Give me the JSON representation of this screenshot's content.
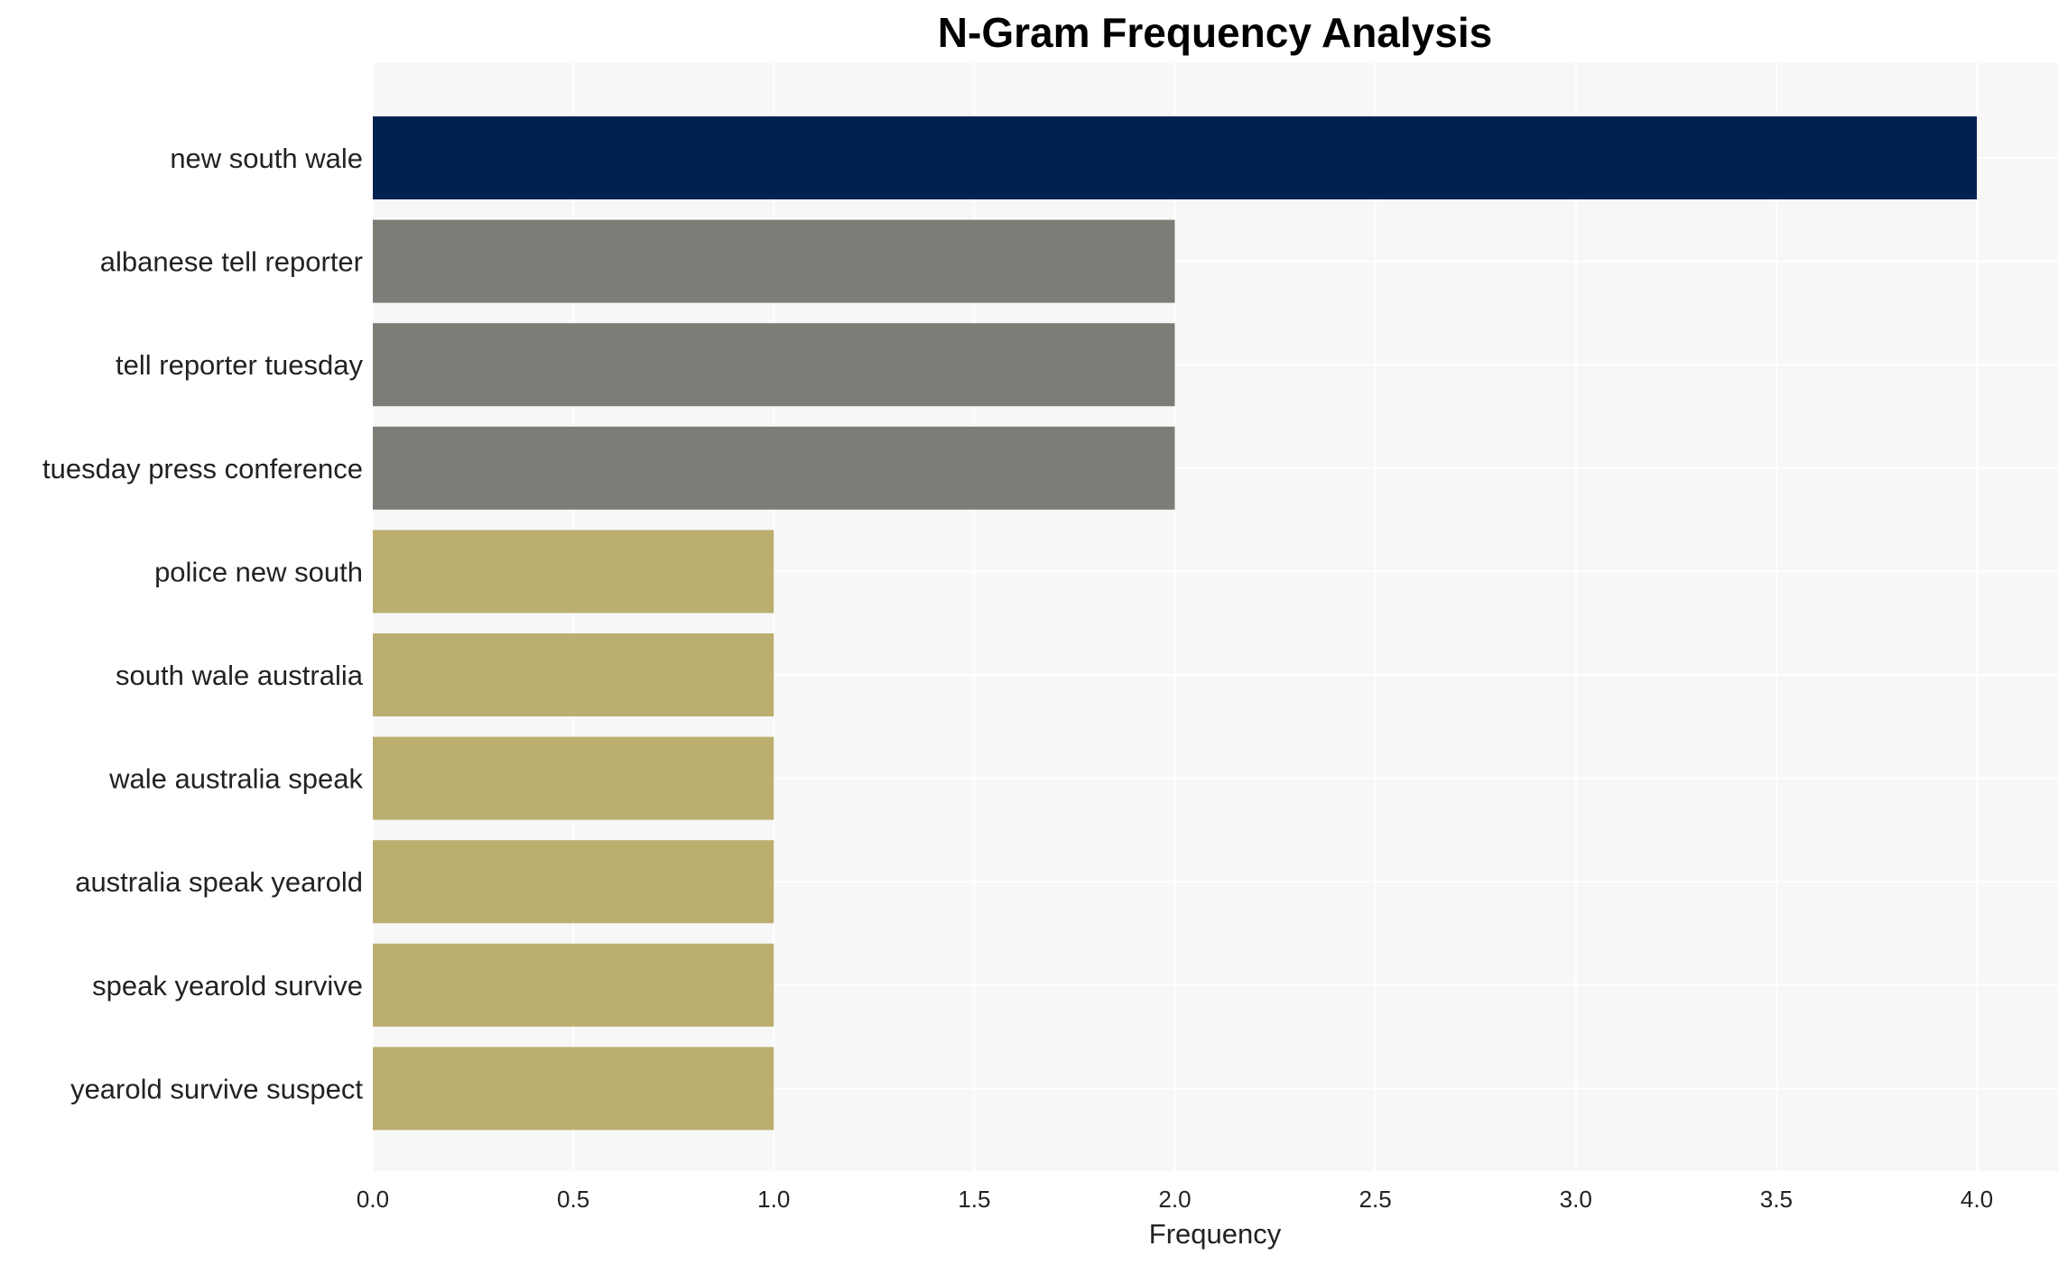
{
  "chart_data": {
    "type": "bar",
    "orientation": "horizontal",
    "title": "N-Gram Frequency Analysis",
    "xlabel": "Frequency",
    "ylabel": "",
    "xlim": [
      0,
      4.2
    ],
    "x_ticks": [
      "0.0",
      "0.5",
      "1.0",
      "1.5",
      "2.0",
      "2.5",
      "3.0",
      "3.5",
      "4.0"
    ],
    "grid": true,
    "background_color": "#f7f7f7",
    "categories": [
      "new south wale",
      "albanese tell reporter",
      "tell reporter tuesday",
      "tuesday press conference",
      "police new south",
      "south wale australia",
      "wale australia speak",
      "australia speak yearold",
      "speak yearold survive",
      "yearold survive suspect"
    ],
    "values": [
      4,
      2,
      2,
      2,
      1,
      1,
      1,
      1,
      1,
      1
    ],
    "colors": [
      "#002250",
      "#7d7c77",
      "#7d7c77",
      "#7d7c77",
      "#bbae6f",
      "#bbae6f",
      "#bbae6f",
      "#bbae6f",
      "#bbae6f",
      "#bbae6f"
    ]
  }
}
